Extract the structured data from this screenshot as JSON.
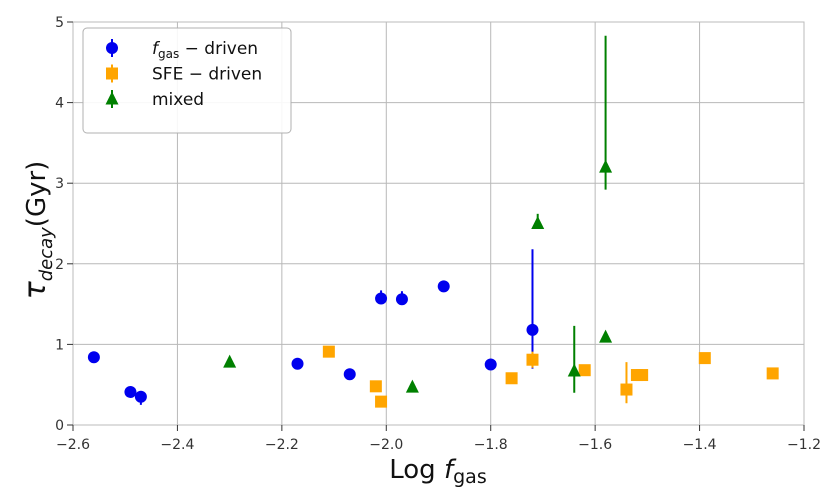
{
  "chart_data": {
    "type": "scatter",
    "title": "",
    "xlabel": {
      "main": "Log ",
      "italic": "f",
      "sub": "gas"
    },
    "ylabel": {
      "main": "τ",
      "sub": "decay",
      "suffix": "(Gyr)"
    },
    "xlim": [
      -2.6,
      -1.2
    ],
    "ylim": [
      0,
      5
    ],
    "xticks": [
      -2.6,
      -2.4,
      -2.2,
      -2.0,
      -1.8,
      -1.6,
      -1.4,
      -1.2
    ],
    "xtick_labels": [
      "−2.6",
      "−2.4",
      "−2.2",
      "−2.0",
      "−1.8",
      "−1.6",
      "−1.4",
      "−1.2"
    ],
    "yticks": [
      0,
      1,
      2,
      3,
      4,
      5
    ],
    "ytick_labels": [
      "0",
      "1",
      "2",
      "3",
      "4",
      "5"
    ],
    "grid": true,
    "legend_position": "top-left",
    "series": [
      {
        "name": "f_gas − driven",
        "legend_label": {
          "italic": "f",
          "sub": "gas",
          "rest": " − driven"
        },
        "marker": "circle",
        "color": "#0000ee",
        "points": [
          {
            "x": -2.56,
            "y": 0.84,
            "err_low": 0.0,
            "err_high": 0.0
          },
          {
            "x": -2.49,
            "y": 0.41,
            "err_low": 0.0,
            "err_high": 0.0
          },
          {
            "x": -2.47,
            "y": 0.35,
            "err_low": 0.1,
            "err_high": 0.0
          },
          {
            "x": -2.17,
            "y": 0.76,
            "err_low": 0.0,
            "err_high": 0.0
          },
          {
            "x": -2.07,
            "y": 0.63,
            "err_low": 0.0,
            "err_high": 0.0
          },
          {
            "x": -2.01,
            "y": 1.57,
            "err_low": 0.05,
            "err_high": 0.1
          },
          {
            "x": -1.97,
            "y": 1.56,
            "err_low": 0.05,
            "err_high": 0.1
          },
          {
            "x": -1.89,
            "y": 1.72,
            "err_low": 0.0,
            "err_high": 0.0
          },
          {
            "x": -1.8,
            "y": 0.75,
            "err_low": 0.0,
            "err_high": 0.0
          },
          {
            "x": -1.72,
            "y": 1.18,
            "err_low": 0.48,
            "err_high": 1.0
          }
        ]
      },
      {
        "name": "SFE − driven",
        "legend_label": {
          "italic": "",
          "sub": "",
          "rest": "SFE − driven"
        },
        "marker": "square",
        "color": "#ffa500",
        "points": [
          {
            "x": -2.11,
            "y": 0.91,
            "err_low": 0.0,
            "err_high": 0.0
          },
          {
            "x": -2.02,
            "y": 0.48,
            "err_low": 0.0,
            "err_high": 0.0
          },
          {
            "x": -2.01,
            "y": 0.29,
            "err_low": 0.0,
            "err_high": 0.0
          },
          {
            "x": -1.76,
            "y": 0.58,
            "err_low": 0.0,
            "err_high": 0.0
          },
          {
            "x": -1.72,
            "y": 0.81,
            "err_low": 0.1,
            "err_high": 0.1
          },
          {
            "x": -1.62,
            "y": 0.68,
            "err_low": 0.0,
            "err_high": 0.0
          },
          {
            "x": -1.54,
            "y": 0.44,
            "err_low": 0.17,
            "err_high": 0.34
          },
          {
            "x": -1.52,
            "y": 0.62,
            "err_low": 0.0,
            "err_high": 0.0
          },
          {
            "x": -1.51,
            "y": 0.62,
            "err_low": 0.0,
            "err_high": 0.0
          },
          {
            "x": -1.39,
            "y": 0.83,
            "err_low": 0.0,
            "err_high": 0.0
          },
          {
            "x": -1.26,
            "y": 0.64,
            "err_low": 0.0,
            "err_high": 0.0
          }
        ]
      },
      {
        "name": "mixed",
        "legend_label": {
          "italic": "",
          "sub": "",
          "rest": "mixed"
        },
        "marker": "triangle",
        "color": "#008000",
        "points": [
          {
            "x": -2.3,
            "y": 0.78,
            "err_low": 0.0,
            "err_high": 0.0
          },
          {
            "x": -1.95,
            "y": 0.47,
            "err_low": 0.0,
            "err_high": 0.0
          },
          {
            "x": -1.71,
            "y": 2.5,
            "err_low": 0.05,
            "err_high": 0.12
          },
          {
            "x": -1.64,
            "y": 0.67,
            "err_low": 0.27,
            "err_high": 0.56
          },
          {
            "x": -1.58,
            "y": 3.2,
            "err_low": 0.28,
            "err_high": 1.63
          },
          {
            "x": -1.58,
            "y": 1.09,
            "err_low": 0.0,
            "err_high": 0.0
          }
        ]
      }
    ]
  }
}
